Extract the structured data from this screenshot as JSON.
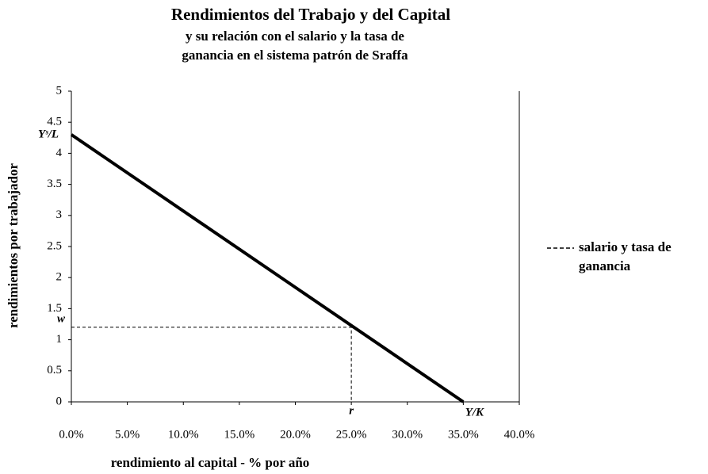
{
  "chart_data": {
    "type": "line",
    "title": "Rendimientos del Trabajo y del Capital",
    "subtitle": [
      "y su relación con el salario y la tasa de",
      "ganancia en el sistema patrón de Sraffa"
    ],
    "x_label": "rendimiento al capital - % por año",
    "y_label": "rendimientos por trabajador",
    "xlim": [
      0,
      40
    ],
    "ylim": [
      0,
      5
    ],
    "xticks": [
      {
        "value": 0,
        "label": "0.0%"
      },
      {
        "value": 5,
        "label": "5.0%"
      },
      {
        "value": 10,
        "label": "10.0%"
      },
      {
        "value": 15,
        "label": "15.0%"
      },
      {
        "value": 20,
        "label": "20.0%"
      },
      {
        "value": 25,
        "label": "25.0%"
      },
      {
        "value": 30,
        "label": "30.0%"
      },
      {
        "value": 35,
        "label": "35.0%"
      },
      {
        "value": 40,
        "label": "40.0%"
      }
    ],
    "yticks": [
      0,
      0.5,
      1,
      1.5,
      2,
      2.5,
      3,
      3.5,
      4,
      4.5,
      5
    ],
    "series": [
      {
        "color": "#000000",
        "style": "solid",
        "x": [
          0,
          35
        ],
        "values": [
          4.3,
          0
        ]
      },
      {
        "name": "salario y tasa de ganancia",
        "color": "#000000",
        "style": "dashed",
        "x": [
          0,
          25,
          25
        ],
        "values": [
          1.2,
          1.2,
          0
        ]
      }
    ],
    "annotations": [
      {
        "text": "Yˢ/L",
        "x": 0,
        "y": 4.3
      },
      {
        "text": "w",
        "x": 0,
        "y": 1.2
      },
      {
        "text": "r",
        "x": 25,
        "y": 0
      },
      {
        "text": "Y/K",
        "x": 35,
        "y": 0
      }
    ]
  }
}
